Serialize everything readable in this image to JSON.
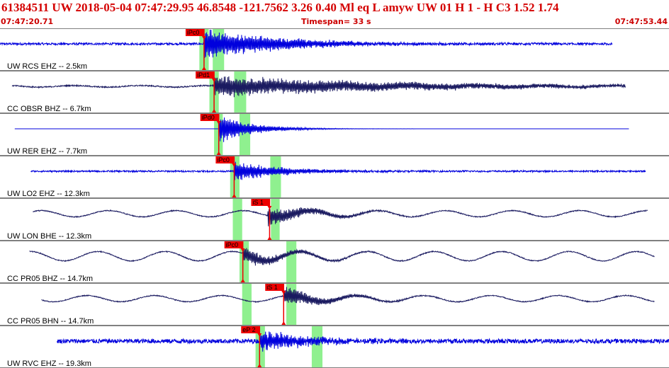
{
  "header": {
    "title": "61384511 UW 2018-05-04 07:47:29.95   46.8548 -121.7562   3.26  0.40 Ml  eq  L amyw     UW 01  H   1  -  H C3    1.52  1.74",
    "start_time": "07:47:20.71",
    "timespan": "Timespan=  33 s",
    "end_time": "07:47:53.44"
  },
  "colors": {
    "blue_trace": "#0000dd",
    "navy_trace": "#1a1a60",
    "pick_fill": "#ee0000",
    "window_fill": "#8ff08f",
    "divider": "#000000"
  },
  "traces": [
    {
      "label": "UW RCS EHZ -- 2.5km",
      "color": "blue",
      "start": 0.0,
      "end": 0.915,
      "noise": 0.07,
      "wave": 0,
      "picks": [
        {
          "text": "iPc0",
          "at": 0.305
        }
      ],
      "windows": [
        [
          0.298,
          0.312
        ],
        [
          0.318,
          0.335
        ]
      ],
      "event": {
        "at": 0.305,
        "amp": 0.9,
        "decay": 0.12
      }
    },
    {
      "label": "CC OBSR BHZ -- 6.7km",
      "color": "navy",
      "start": 0.018,
      "end": 0.935,
      "noise": 0.04,
      "wave": 0.05,
      "picks": [
        {
          "text": "iPd1",
          "at": 0.32
        }
      ],
      "windows": [
        [
          0.313,
          0.327
        ],
        [
          0.35,
          0.368
        ]
      ],
      "event": {
        "at": 0.32,
        "amp": 0.6,
        "decay": 0.3
      }
    },
    {
      "label": "UW RER EHZ -- 7.7km",
      "color": "blue",
      "start": 0.022,
      "end": 0.94,
      "noise": 0.0,
      "wave": 0,
      "picks": [
        {
          "text": "iPd0",
          "at": 0.327
        }
      ],
      "windows": [
        [
          0.32,
          0.333
        ],
        [
          0.358,
          0.374
        ]
      ],
      "event": {
        "at": 0.327,
        "amp": 0.85,
        "decay": 0.05
      }
    },
    {
      "label": "UW LO2 EHZ -- 12.3km",
      "color": "blue",
      "start": 0.046,
      "end": 0.965,
      "noise": 0.05,
      "wave": 0,
      "picks": [
        {
          "text": "iPc0",
          "at": 0.35
        }
      ],
      "windows": [
        [
          0.344,
          0.358
        ],
        [
          0.404,
          0.42
        ]
      ],
      "event": {
        "at": 0.35,
        "amp": 0.55,
        "decay": 0.08
      }
    },
    {
      "label": "UW LON BHE -- 12.3km",
      "color": "navy",
      "start": 0.049,
      "end": 0.968,
      "noise": 0.03,
      "wave": 0.2,
      "picks": [
        {
          "text": "iS 1",
          "at": 0.403
        }
      ],
      "windows": [
        [
          0.348,
          0.362
        ],
        [
          0.405,
          0.418
        ]
      ],
      "event": {
        "at": 0.4,
        "amp": 0.6,
        "decay": 0.06
      }
    },
    {
      "label": "CC PR05 BHZ -- 14.7km",
      "color": "navy",
      "start": 0.044,
      "end": 0.978,
      "noise": 0.03,
      "wave": 0.3,
      "picks": [
        {
          "text": "iPc0",
          "at": 0.363
        }
      ],
      "windows": [
        [
          0.358,
          0.372
        ],
        [
          0.428,
          0.443
        ]
      ],
      "event": {
        "at": 0.363,
        "amp": 0.5,
        "decay": 0.06
      }
    },
    {
      "label": "CC PR05 BHN -- 14.7km",
      "color": "navy",
      "start": 0.062,
      "end": 0.978,
      "noise": 0.03,
      "wave": 0.2,
      "picks": [
        {
          "text": "iS 1",
          "at": 0.424
        }
      ],
      "windows": [
        [
          0.362,
          0.376
        ],
        [
          0.428,
          0.443
        ]
      ],
      "event": {
        "at": 0.424,
        "amp": 0.55,
        "decay": 0.06
      }
    },
    {
      "label": "UW RVC EHZ -- 19.3km",
      "color": "blue",
      "start": 0.085,
      "end": 1.0,
      "noise": 0.14,
      "wave": 0,
      "picks": [
        {
          "text": "eP 2",
          "at": 0.388
        }
      ],
      "windows": [
        [
          0.382,
          0.396
        ],
        [
          0.466,
          0.482
        ]
      ],
      "event": {
        "at": 0.388,
        "amp": 0.6,
        "decay": 0.08
      }
    }
  ]
}
